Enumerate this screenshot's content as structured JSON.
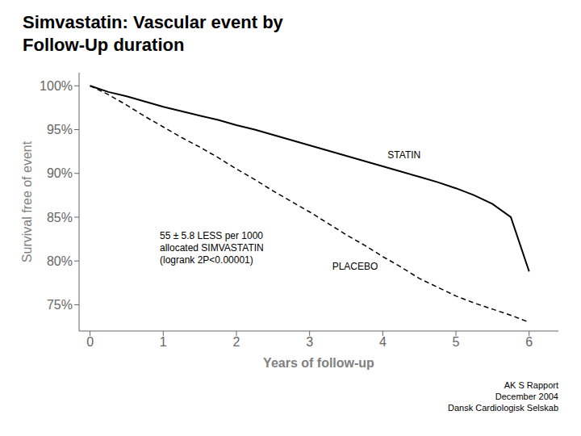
{
  "chart_data": {
    "type": "line",
    "title": "Simvastatin: Vascular event by\nFollow-Up duration",
    "xlabel": "Years of follow-up",
    "ylabel": "Survival free of event",
    "xlim": [
      -0.15,
      6.4
    ],
    "ylim": [
      72,
      101.5
    ],
    "xticks": [
      0,
      1,
      2,
      3,
      4,
      5,
      6
    ],
    "yticks": [
      {
        "value": 75,
        "label": "75%"
      },
      {
        "value": 80,
        "label": "80%"
      },
      {
        "value": 85,
        "label": "85%"
      },
      {
        "value": 90,
        "label": "90%"
      },
      {
        "value": 95,
        "label": "95%"
      },
      {
        "value": 100,
        "label": "100%"
      }
    ],
    "grid": false,
    "x": [
      0,
      0.25,
      0.5,
      0.75,
      1.0,
      1.25,
      1.5,
      1.75,
      2.0,
      2.25,
      2.5,
      2.75,
      3.0,
      3.25,
      3.5,
      3.75,
      4.0,
      4.25,
      4.5,
      4.75,
      5.0,
      5.25,
      5.5,
      5.75,
      6.0
    ],
    "series": [
      {
        "name": "PLACEBO",
        "color": "black",
        "line_style": "dashed",
        "values": [
          100,
          99.0,
          97.8,
          96.5,
          95.3,
          94.1,
          93.0,
          91.8,
          90.5,
          89.3,
          88.0,
          86.8,
          85.6,
          84.3,
          83.0,
          81.8,
          80.5,
          79.3,
          78.0,
          77.0,
          76.0,
          75.2,
          74.5,
          73.8,
          73.0
        ]
      },
      {
        "name": "STATIN",
        "color": "black",
        "line_style": "solid",
        "values": [
          100,
          99.3,
          98.8,
          98.2,
          97.6,
          97.1,
          96.6,
          96.1,
          95.5,
          95.0,
          94.4,
          93.8,
          93.2,
          92.6,
          92.0,
          91.4,
          90.8,
          90.2,
          89.6,
          89.0,
          88.3,
          87.5,
          86.5,
          85.0,
          78.8
        ]
      }
    ],
    "annotations": [
      "55 ± 5.8 LESS per 1000\nallocated SIMVASTATIN\n(logrank 2P<0.00001)",
      "AK S Rapport",
      "December 2004",
      "Dansk Cardiologisk Selskab"
    ]
  }
}
